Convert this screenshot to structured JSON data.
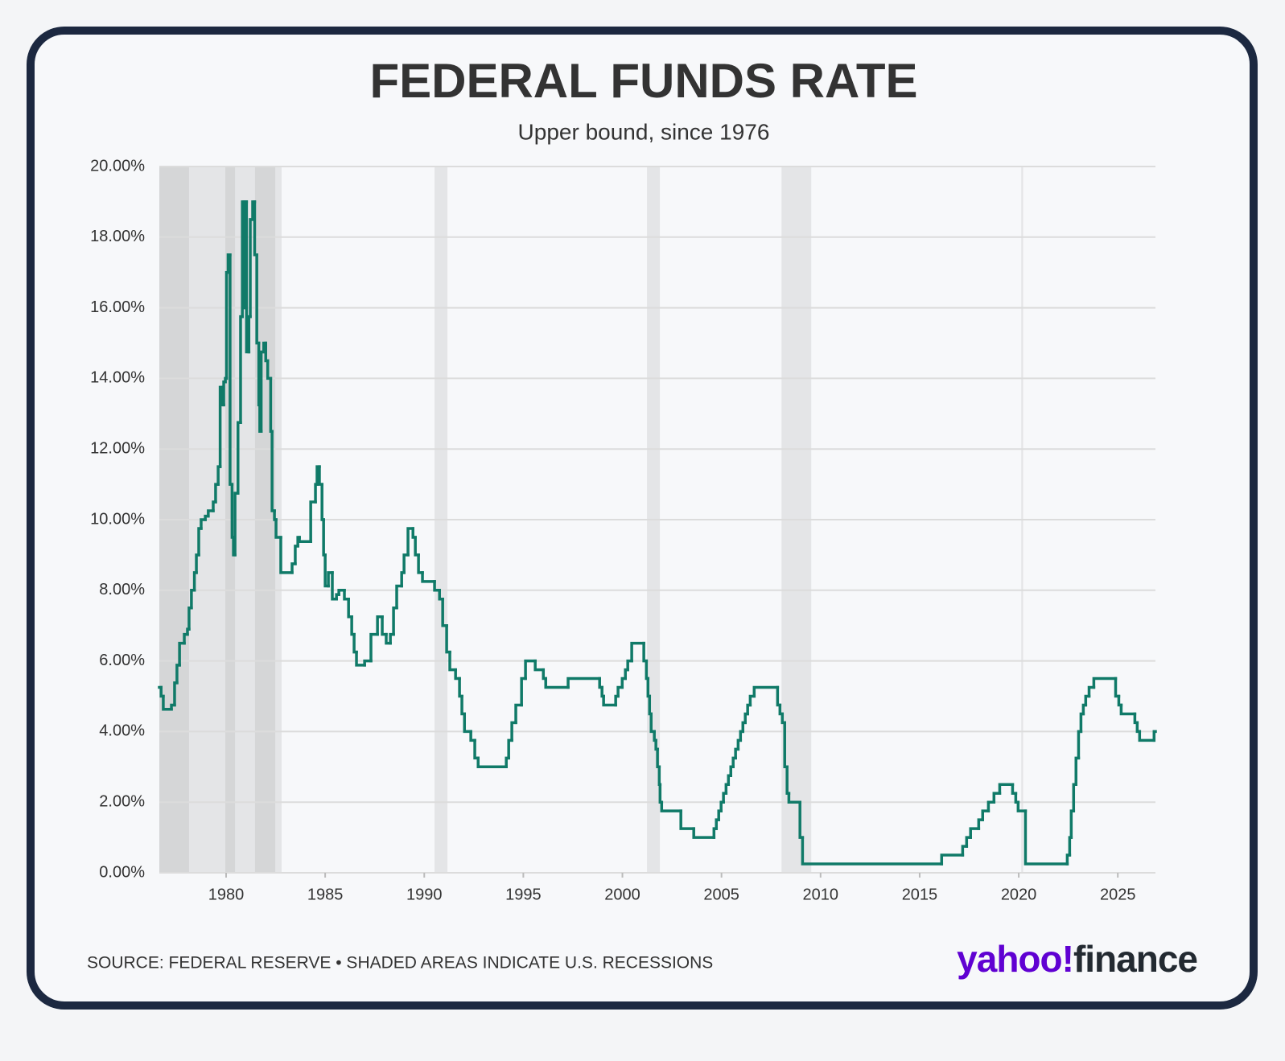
{
  "chart_data": {
    "type": "line",
    "step": true,
    "title": "FEDERAL FUNDS RATE",
    "subtitle": "Upper bound, since 1976",
    "color": "#107a68",
    "recession_color": "#9a9a9a",
    "recessions": [
      [
        1976.63,
        1978.13
      ],
      [
        1976.63,
        1982.8
      ],
      [
        1979.96,
        1980.45
      ],
      [
        1981.46,
        1982.48
      ],
      [
        1990.52,
        1991.17
      ],
      [
        2001.24,
        2001.89
      ],
      [
        2008.03,
        2009.53
      ],
      [
        2020.13,
        2020.22
      ]
    ],
    "x": [
      1976.63,
      1976.72,
      1976.83,
      1977.24,
      1977.4,
      1977.52,
      1977.65,
      1977.89,
      1978.05,
      1978.13,
      1978.25,
      1978.4,
      1978.5,
      1978.62,
      1978.74,
      1978.95,
      1979.1,
      1979.35,
      1979.47,
      1979.6,
      1979.7,
      1979.8,
      1979.88,
      1979.96,
      1980.02,
      1980.1,
      1980.2,
      1980.3,
      1980.37,
      1980.45,
      1980.6,
      1980.73,
      1980.82,
      1980.9,
      1980.98,
      1981.03,
      1981.15,
      1981.22,
      1981.34,
      1981.44,
      1981.55,
      1981.65,
      1981.7,
      1981.77,
      1981.9,
      1982.0,
      1982.1,
      1982.25,
      1982.32,
      1982.44,
      1982.52,
      1982.76,
      1983.33,
      1983.49,
      1983.62,
      1983.7,
      1984.27,
      1984.51,
      1984.59,
      1984.71,
      1984.84,
      1984.92,
      1985.0,
      1985.16,
      1985.36,
      1985.57,
      1985.69,
      1985.97,
      1986.18,
      1986.34,
      1986.46,
      1986.58,
      1986.99,
      1987.31,
      1987.64,
      1987.88,
      1988.08,
      1988.29,
      1988.45,
      1988.61,
      1988.86,
      1988.98,
      1989.18,
      1989.43,
      1989.55,
      1989.71,
      1989.91,
      1990.52,
      1990.77,
      1990.93,
      1991.13,
      1991.29,
      1991.58,
      1991.78,
      1991.9,
      1992.03,
      1992.35,
      1992.55,
      1992.72,
      1994.14,
      1994.26,
      1994.42,
      1994.62,
      1994.91,
      1995.11,
      1995.6,
      1996.01,
      1996.13,
      1997.26,
      1998.85,
      1998.97,
      1999.05,
      1999.66,
      1999.78,
      1999.99,
      2000.15,
      2000.27,
      2000.47,
      2001.08,
      2001.21,
      2001.29,
      2001.37,
      2001.45,
      2001.61,
      2001.69,
      2001.77,
      2001.86,
      2001.9,
      2001.98,
      2002.95,
      2003.6,
      2004.62,
      2004.74,
      2004.86,
      2004.98,
      2005.1,
      2005.23,
      2005.35,
      2005.47,
      2005.59,
      2005.71,
      2005.84,
      2005.96,
      2006.08,
      2006.2,
      2006.32,
      2006.45,
      2006.65,
      2007.83,
      2007.95,
      2008.07,
      2008.19,
      2008.31,
      2008.4,
      2008.96,
      2009.09,
      2016.11,
      2017.17,
      2017.37,
      2017.57,
      2017.98,
      2018.18,
      2018.47,
      2018.75,
      2019.04,
      2019.69,
      2019.85,
      2019.97,
      2020.34,
      2022.45,
      2022.57,
      2022.65,
      2022.77,
      2022.89,
      2023.02,
      2023.14,
      2023.26,
      2023.38,
      2023.55,
      2023.79,
      2024.89,
      2025.05,
      2025.17,
      2025.86,
      2025.98,
      2026.1,
      2026.83
    ],
    "values": [
      5.25,
      5.0,
      4.63,
      4.75,
      5.38,
      5.88,
      6.5,
      6.75,
      6.9,
      7.5,
      8.0,
      8.5,
      9.0,
      9.75,
      10.0,
      10.1,
      10.25,
      10.5,
      11.0,
      11.5,
      13.75,
      13.25,
      13.9,
      14.0,
      17.0,
      17.5,
      11.0,
      9.5,
      9.0,
      10.75,
      12.75,
      15.75,
      19.0,
      16.0,
      19.0,
      14.75,
      15.75,
      18.5,
      19.0,
      17.5,
      15.0,
      13.25,
      12.5,
      14.75,
      15.0,
      14.5,
      14.0,
      12.5,
      10.25,
      10.0,
      9.5,
      8.5,
      8.75,
      9.25,
      9.5,
      9.38,
      10.5,
      11.0,
      11.5,
      11.0,
      10.0,
      9.0,
      8.12,
      8.5,
      7.75,
      7.88,
      8.0,
      7.75,
      7.25,
      6.75,
      6.25,
      5.88,
      6.0,
      6.75,
      7.25,
      6.75,
      6.5,
      6.75,
      7.5,
      8.12,
      8.5,
      9.0,
      9.75,
      9.5,
      9.0,
      8.5,
      8.25,
      8.0,
      7.75,
      7.0,
      6.25,
      5.75,
      5.5,
      5.0,
      4.5,
      4.0,
      3.75,
      3.25,
      3.0,
      3.25,
      3.75,
      4.25,
      4.75,
      5.5,
      6.0,
      5.75,
      5.5,
      5.25,
      5.5,
      5.25,
      5.0,
      4.75,
      5.0,
      5.25,
      5.5,
      5.75,
      6.0,
      6.5,
      6.0,
      5.5,
      5.0,
      4.5,
      4.0,
      3.75,
      3.5,
      3.0,
      2.5,
      2.0,
      1.75,
      1.25,
      1.0,
      1.25,
      1.5,
      1.75,
      2.0,
      2.25,
      2.5,
      2.75,
      3.0,
      3.25,
      3.5,
      3.75,
      4.0,
      4.25,
      4.5,
      4.75,
      5.0,
      5.25,
      4.75,
      4.5,
      4.25,
      3.0,
      2.25,
      2.0,
      1.0,
      0.25,
      0.5,
      0.75,
      1.0,
      1.25,
      1.5,
      1.75,
      2.0,
      2.25,
      2.5,
      2.25,
      2.0,
      1.75,
      0.25,
      0.5,
      1.0,
      1.75,
      2.5,
      3.25,
      4.0,
      4.5,
      4.75,
      5.0,
      5.25,
      5.5,
      5.0,
      4.75,
      4.5,
      4.25,
      4.0,
      3.75,
      4.0
    ],
    "xlim": [
      1976.63,
      2026.9
    ],
    "xticks": [
      1980,
      1985,
      1990,
      1995,
      2000,
      2005,
      2010,
      2015,
      2020,
      2025
    ],
    "ylim": [
      0,
      20
    ],
    "yticks": [
      {
        "value": 0,
        "label": "0.00%"
      },
      {
        "value": 2,
        "label": "2.00%"
      },
      {
        "value": 4,
        "label": "4.00%"
      },
      {
        "value": 6,
        "label": "6.00%"
      },
      {
        "value": 8,
        "label": "8.00%"
      },
      {
        "value": 10,
        "label": "10.00%"
      },
      {
        "value": 12,
        "label": "12.00%"
      },
      {
        "value": 14,
        "label": "14.00%"
      },
      {
        "value": 16,
        "label": "16.00%"
      },
      {
        "value": 18,
        "label": "18.00%"
      },
      {
        "value": 20,
        "label": "20.00%"
      }
    ],
    "grid": true
  },
  "footer": {
    "source": "SOURCE: FEDERAL RESERVE • SHADED AREAS INDICATE U.S. RECESSIONS",
    "logo": {
      "brand": "yahoo!",
      "product": "finance"
    }
  }
}
